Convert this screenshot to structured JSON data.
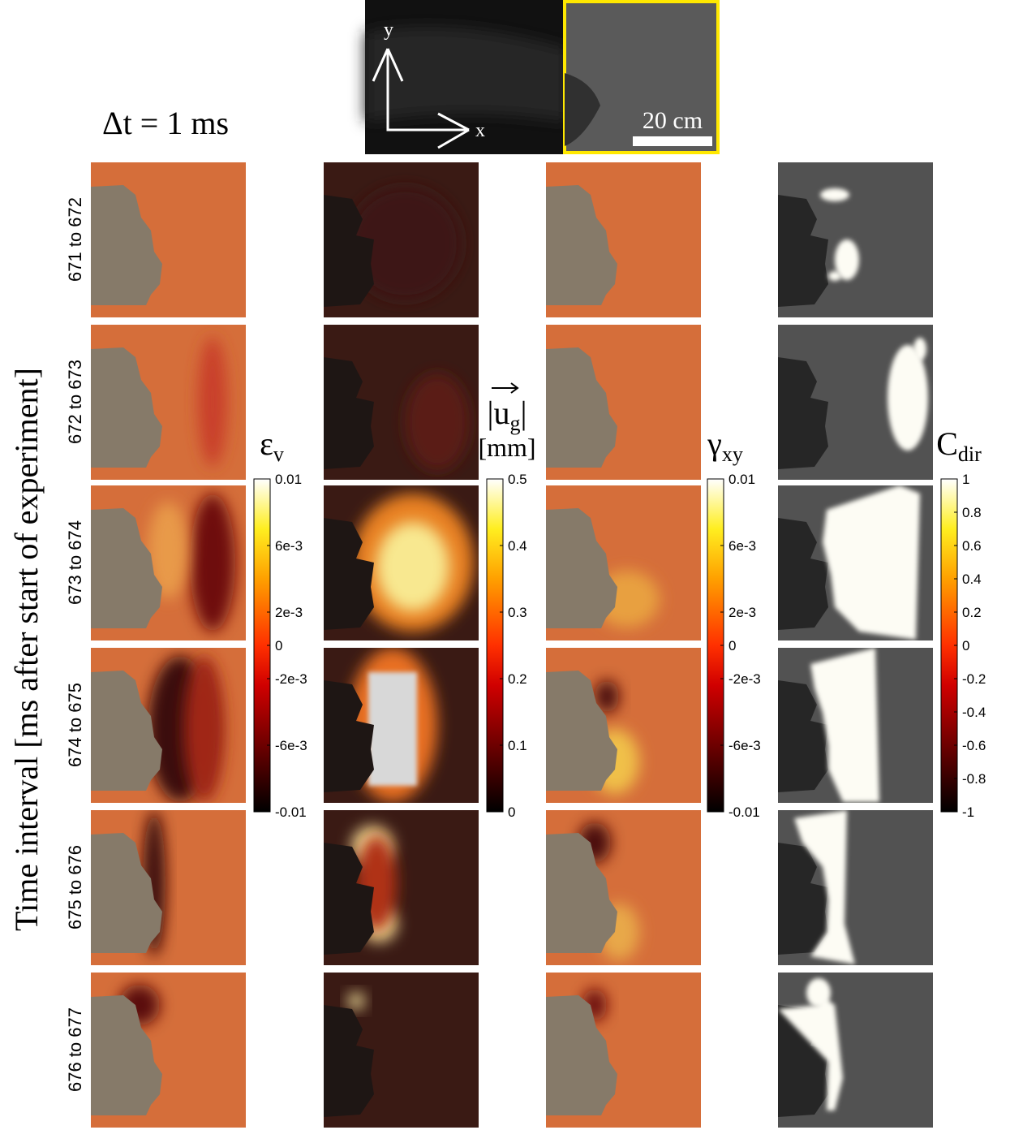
{
  "inset": {
    "y_label": "y",
    "x_label": "x",
    "scale_bar": "20 cm"
  },
  "header": "Δt = 1 ms",
  "y_axis_label": "Time interval  [ms after start of experiment]",
  "row_labels": [
    "671 to 672",
    "672 to 673",
    "673 to 674",
    "674 to 675",
    "675 to 676",
    "676 to 677"
  ],
  "colorbars": [
    {
      "symbol": "ε",
      "subscript": "v",
      "lim": [
        -0.01,
        0.01
      ],
      "ticks": [
        -0.01,
        {
          "value": -0.006,
          "label": "-6e-3"
        },
        {
          "value": -0.002,
          "label": "-2e-3"
        },
        0,
        {
          "value": 0.002,
          "label": "2e-3"
        },
        {
          "value": 0.006,
          "label": "6e-3"
        },
        0.01
      ]
    },
    {
      "left": "|",
      "symbol": "u",
      "subscript": "g",
      "right": "|",
      "unit": "[mm]",
      "lim": [
        0,
        0.5
      ],
      "ticks": [
        0,
        0.1,
        0.2,
        0.3,
        0.4,
        0.5
      ]
    },
    {
      "symbol": "γ",
      "subscript": "xy",
      "lim": [
        -0.01,
        0.01
      ],
      "ticks": [
        -0.01,
        {
          "value": -0.006,
          "label": "-6e-3"
        },
        {
          "value": -0.002,
          "label": "-2e-3"
        },
        0,
        {
          "value": 0.002,
          "label": "2e-3"
        },
        {
          "value": 0.006,
          "label": "6e-3"
        },
        0.01
      ]
    },
    {
      "symbol": "C",
      "subscript": "dir",
      "lim": [
        -1,
        1
      ],
      "ticks": [
        -1,
        -0.8,
        -0.6,
        -0.4,
        -0.2,
        0,
        0.2,
        0.4,
        0.6,
        0.8,
        1
      ]
    }
  ]
}
